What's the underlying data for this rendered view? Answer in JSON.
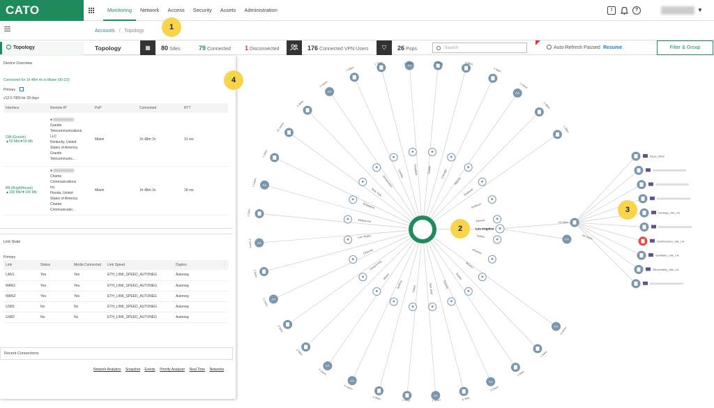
{
  "app": {
    "brand": "CATO"
  },
  "nav": {
    "items": [
      "Monitoring",
      "Network",
      "Access",
      "Security",
      "Assets",
      "Administration"
    ],
    "active": "Monitoring"
  },
  "breadcrumb": {
    "root": "Accounts",
    "sep": "/",
    "current": "Topology"
  },
  "sidebar": {
    "topology_label": "Topology"
  },
  "stats": {
    "title": "Topology",
    "sites_count": "80",
    "sites_label": "Sites",
    "connected_count": "79",
    "connected_label": "Connected",
    "disconnected_count": "1",
    "disconnected_label": "Disconnected",
    "vpn_count": "176",
    "vpn_label": "Connected VPN Users",
    "pops_count": "26",
    "pops_label": "Pops",
    "search_placeholder": "Search",
    "auto_refresh": "Auto-Refresh Paused",
    "resume": "Resume",
    "filter_btn": "Filter & Group"
  },
  "device": {
    "title": "Device Overview",
    "connected_text": "Connected for 1h 48m 4s to Miami (00:1D)",
    "primary": "Primary",
    "version": "v12.0.7955 for 29 days",
    "headers": [
      "Interface",
      "Remote IP",
      "PoP",
      "Connected",
      "RTT"
    ],
    "rows": [
      {
        "iface": "DIA (Granite)",
        "speed": "▲50 Mb/▼50 Mb",
        "isp1": "Granite",
        "isp2": "Telecommunications",
        "isp3": "LLC",
        "loc1": "Kentucky, United",
        "loc2": "States of America",
        "loc3": "Granite",
        "loc4": "Telecommunic...",
        "pop": "Miami",
        "connected": "1h 48m 2s",
        "rtt": "31 ms"
      },
      {
        "iface": "BB (BrightHouse)",
        "speed": "▲100 Mb/▼100 Mb",
        "isp1": "Charter",
        "isp2": "Communications",
        "isp3": "Inc",
        "loc1": "Florida, United",
        "loc2": "States of America",
        "loc3": "Charter",
        "loc4": "Communicatio...",
        "pop": "Miami",
        "connected": "1h 48m 2s",
        "rtt": "18 ms"
      }
    ]
  },
  "link_state": {
    "title": "Link State",
    "primary": "Primary",
    "headers": [
      "Link",
      "Status",
      "Media Connected",
      "Link Speed",
      "Duplex"
    ],
    "rows": [
      {
        "link": "LAN1",
        "status": "Yes",
        "media": "Yes",
        "speed": "ETH_LINK_SPEED_AUTONEG",
        "duplex": "Autoneg"
      },
      {
        "link": "WAN1",
        "status": "Yes",
        "media": "Yes",
        "speed": "ETH_LINK_SPEED_AUTONEG",
        "duplex": "Autoneg"
      },
      {
        "link": "WAN2",
        "status": "Yes",
        "media": "Yes",
        "speed": "ETH_LINK_SPEED_AUTONEG",
        "duplex": "Autoneg"
      },
      {
        "link": "USB1",
        "status": "No",
        "media": "No",
        "speed": "ETH_LINK_SPEED_AUTONEG",
        "duplex": "Autoneg"
      },
      {
        "link": "USB2",
        "status": "No",
        "media": "No",
        "speed": "ETH_LINK_SPEED_AUTONEG",
        "duplex": "Autoneg"
      }
    ]
  },
  "recent": {
    "title": "Recent Connections"
  },
  "footer_links": [
    "Network Analytics",
    "Snapshot",
    "Events",
    "Priority Analyzer",
    "Real Time",
    "Networks"
  ],
  "badges": [
    "1",
    "2",
    "3",
    "4"
  ],
  "topology": {
    "hub_label": "Los Angeles",
    "cluster_label": "10 Sites",
    "cluster_users": "16 Users",
    "cluster_sites": [
      {
        "name": "Azure_West",
        "status": "ok"
      },
      {
        "name": "",
        "status": "ok"
      },
      {
        "name": "",
        "status": "ok"
      },
      {
        "name": "",
        "status": "ok"
      },
      {
        "name": "Santiago_Site_CA",
        "status": "ok"
      },
      {
        "name": "",
        "status": "ok"
      },
      {
        "name": "SanFrancisco_Site_CA",
        "status": "down"
      },
      {
        "name": "SanMateo_Site_CA",
        "status": "ok"
      },
      {
        "name": "SiliconValley_Site_CA",
        "status": "ok"
      },
      {
        "name": "",
        "status": "ok"
      }
    ],
    "pops": [
      "Seattle",
      "Chicago",
      "Atlanta",
      "Portland",
      "Ashburn",
      "Denver",
      "Dallas",
      "Phoenix",
      "Mexico",
      "Dublin",
      "Toronto",
      "San Jose",
      "Tokyo",
      "Sydney",
      "Miami",
      "Hong Kong",
      "Chennai",
      "Las Vegas",
      "Melbourne",
      "Singapore",
      "New York",
      "Amsterdam",
      "London",
      "Frankfurt"
    ],
    "outer": [
      {
        "kind": "user",
        "label": "1 Users"
      },
      {
        "kind": "site",
        "label": "3 Sites"
      },
      {
        "kind": "site",
        "label": "1 Sites"
      },
      {
        "kind": "site",
        "label": "2 Sites"
      },
      {
        "kind": "user",
        "label": "1 Users"
      },
      {
        "kind": "site",
        "label": "1 Sites"
      },
      {
        "kind": "site",
        "label": "1 Sites"
      },
      {
        "kind": "user",
        "label": "1 Users"
      },
      {
        "kind": "site",
        "label": "1 Sites"
      },
      {
        "kind": "user",
        "label": "2 Users"
      },
      {
        "kind": "user",
        "label": "2 Users"
      },
      {
        "kind": "site",
        "label": "15 Sites"
      },
      {
        "kind": "site",
        "label": "1 Sites"
      },
      {
        "kind": "user",
        "label": "4 Users"
      },
      {
        "kind": "site",
        "label": "1 Sites"
      },
      {
        "kind": "site",
        "label": "1 Sites"
      },
      {
        "kind": "user",
        "label": "2 Users"
      },
      {
        "kind": "site",
        "label": "6 Sites"
      },
      {
        "kind": "user",
        "label": "1 Users"
      },
      {
        "kind": "site",
        "label": "1 Sites"
      },
      {
        "kind": "site",
        "label": "2 Sites"
      },
      {
        "kind": "user",
        "label": "6 Users"
      },
      {
        "kind": "user",
        "label": "7 Users"
      },
      {
        "kind": "site",
        "label": "3 Sites"
      },
      {
        "kind": "site",
        "label": "2 Sites"
      },
      {
        "kind": "user",
        "label": "1 Users"
      },
      {
        "kind": "site",
        "label": "1 Sites"
      },
      {
        "kind": "user",
        "label": "2 Users"
      },
      {
        "kind": "site",
        "label": "1 Sites"
      },
      {
        "kind": "user",
        "label": "1 Users"
      },
      {
        "kind": "site",
        "label": "1 Sites"
      },
      {
        "kind": "site",
        "label": "11 Users"
      },
      {
        "kind": "site",
        "label": "1 Sites"
      },
      {
        "kind": "user",
        "label": "4 Users"
      },
      {
        "kind": "site",
        "label": "1 Sites"
      },
      {
        "kind": "site",
        "label": "1 Sites"
      }
    ]
  }
}
